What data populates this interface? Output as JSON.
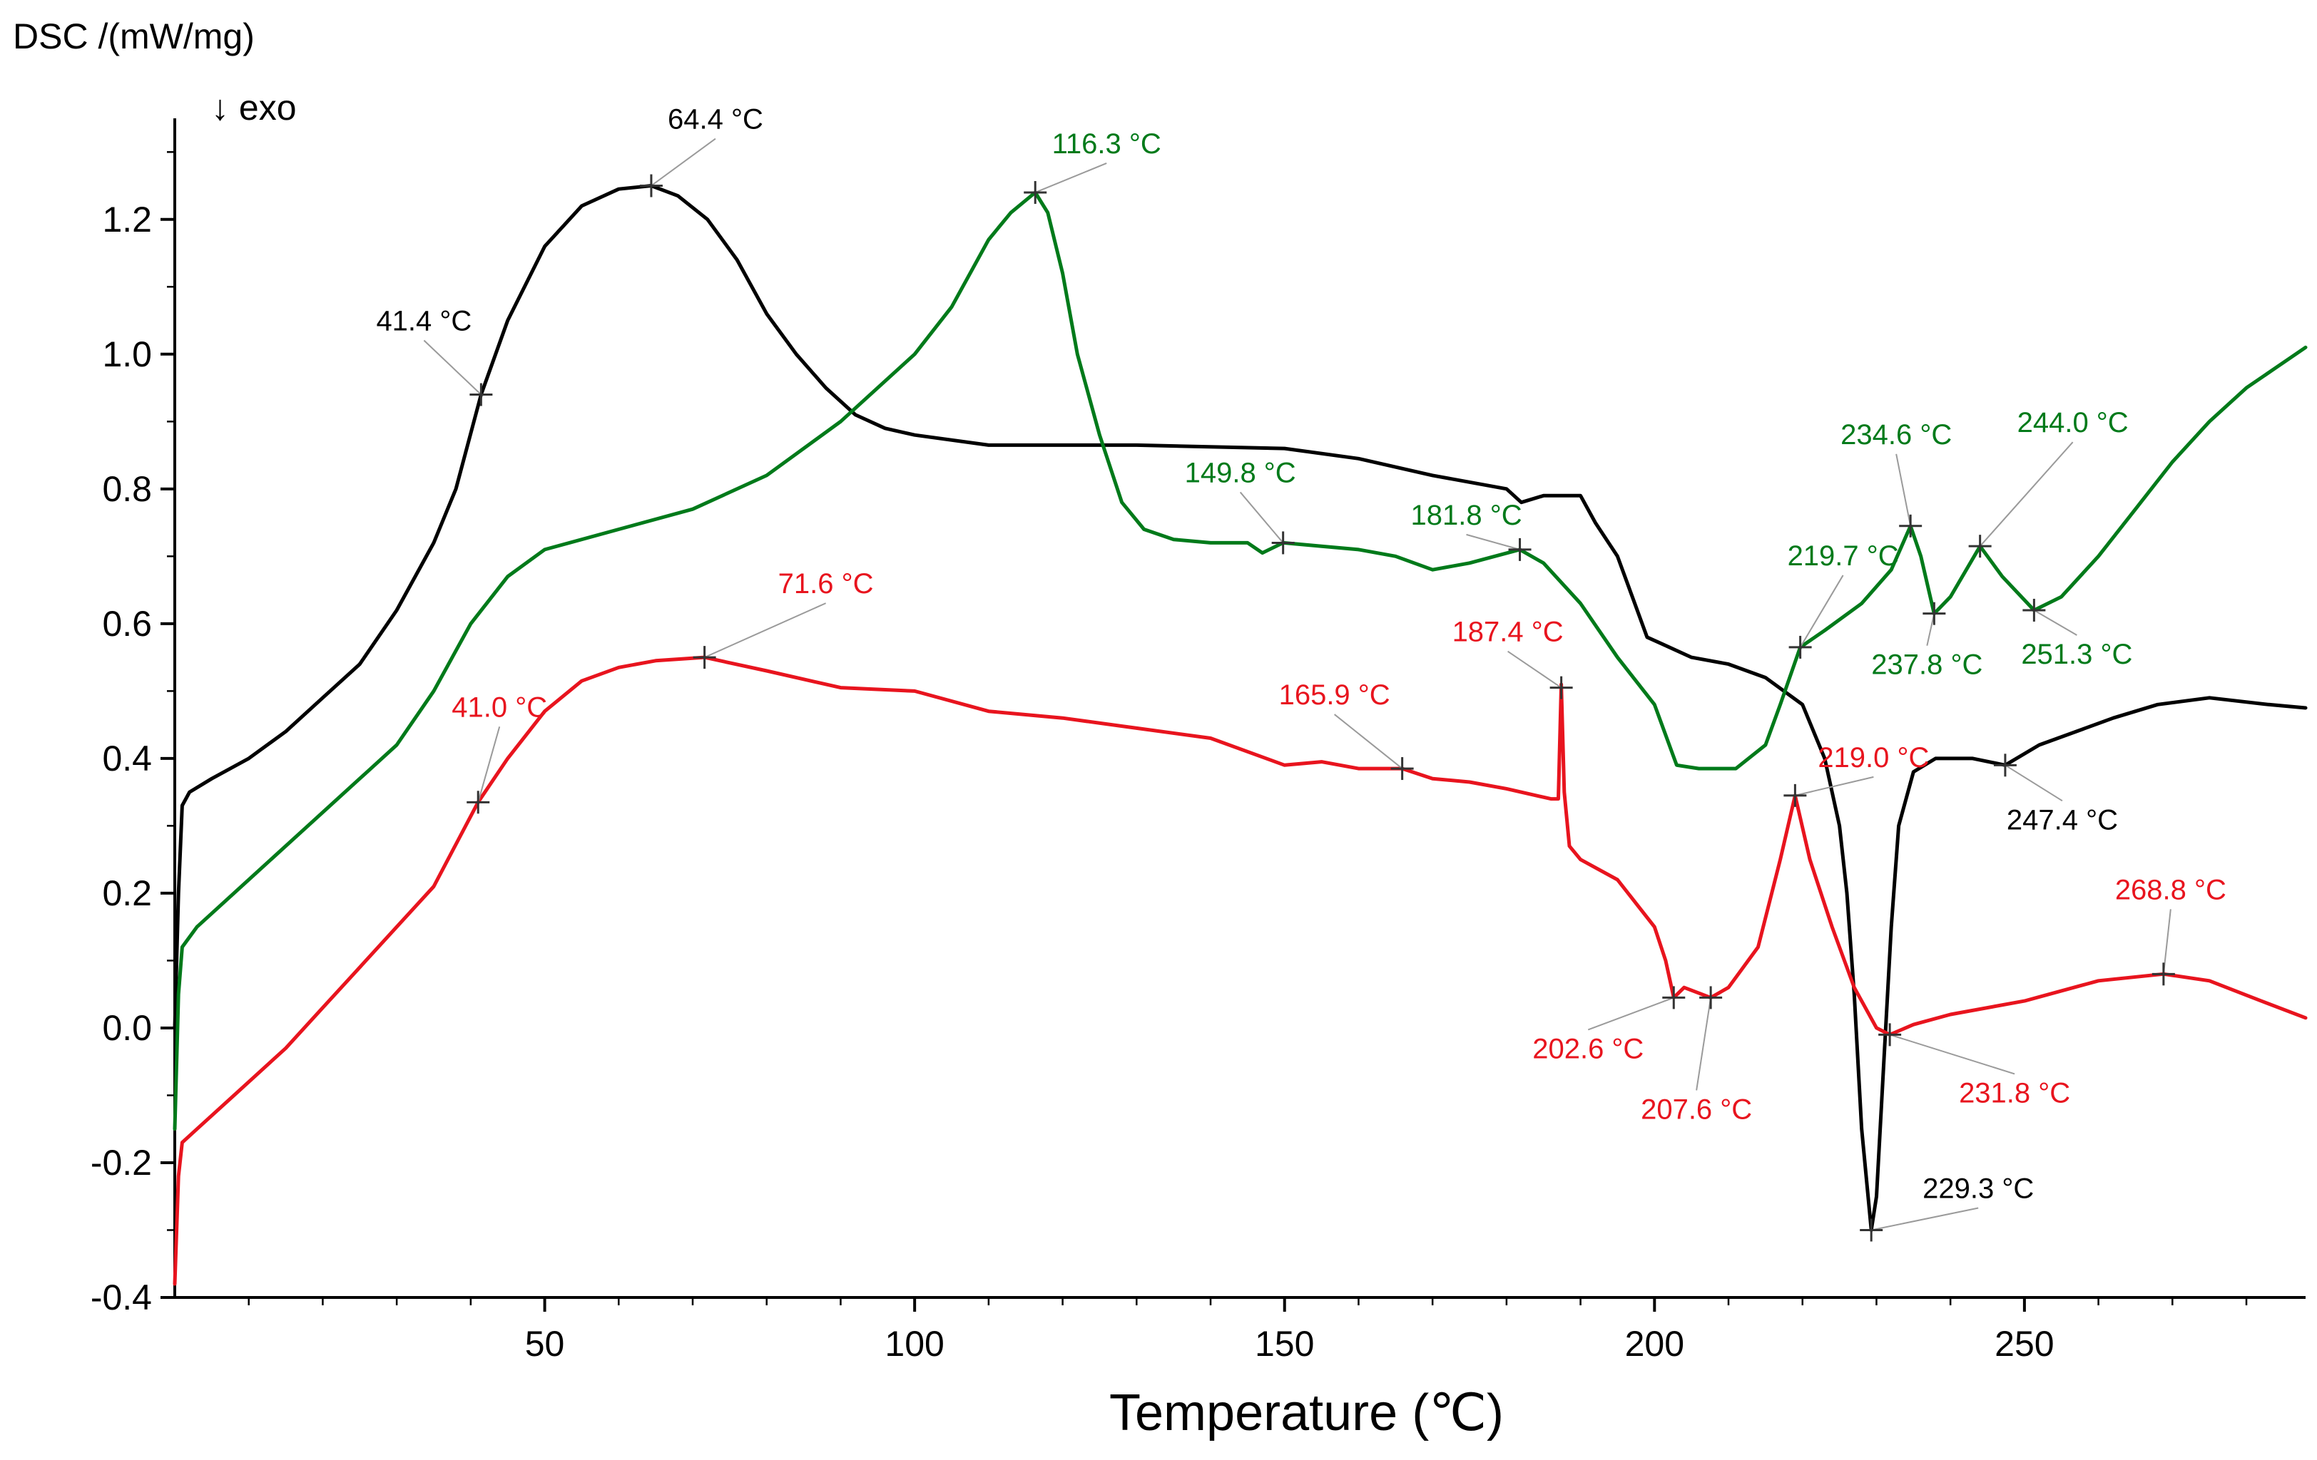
{
  "chart_data": {
    "type": "line",
    "title": "",
    "ylabel": "DSC /(mW/mg)",
    "direction_label": "↓ exo",
    "xlabel": "Temperature (℃)",
    "xlim": [
      0,
      288
    ],
    "ylim": [
      -0.4,
      1.35
    ],
    "xticks": [
      50,
      100,
      150,
      200,
      250
    ],
    "yticks": [
      -0.4,
      -0.2,
      0.0,
      0.2,
      0.4,
      0.6,
      0.8,
      1.0,
      1.2
    ],
    "ytick_labels": [
      "-0.4",
      "-0.2",
      "0.0",
      "0.2",
      "0.4",
      "0.6",
      "0.8",
      "1.0",
      "1.2"
    ],
    "series": [
      {
        "name": "black",
        "color": "#000000",
        "points": [
          [
            0,
            0.0
          ],
          [
            0.5,
            0.2
          ],
          [
            1,
            0.33
          ],
          [
            2,
            0.35
          ],
          [
            5,
            0.37
          ],
          [
            10,
            0.4
          ],
          [
            15,
            0.44
          ],
          [
            20,
            0.49
          ],
          [
            25,
            0.54
          ],
          [
            30,
            0.62
          ],
          [
            35,
            0.72
          ],
          [
            38,
            0.8
          ],
          [
            41.4,
            0.94
          ],
          [
            45,
            1.05
          ],
          [
            50,
            1.16
          ],
          [
            55,
            1.22
          ],
          [
            60,
            1.245
          ],
          [
            64.4,
            1.25
          ],
          [
            68,
            1.235
          ],
          [
            72,
            1.2
          ],
          [
            76,
            1.14
          ],
          [
            80,
            1.06
          ],
          [
            84,
            1.0
          ],
          [
            88,
            0.95
          ],
          [
            92,
            0.91
          ],
          [
            96,
            0.89
          ],
          [
            100,
            0.88
          ],
          [
            110,
            0.865
          ],
          [
            130,
            0.865
          ],
          [
            150,
            0.86
          ],
          [
            160,
            0.845
          ],
          [
            170,
            0.82
          ],
          [
            180,
            0.8
          ],
          [
            182,
            0.78
          ],
          [
            185,
            0.79
          ],
          [
            190,
            0.79
          ],
          [
            192,
            0.75
          ],
          [
            195,
            0.7
          ],
          [
            197,
            0.64
          ],
          [
            199,
            0.58
          ],
          [
            201,
            0.57
          ],
          [
            205,
            0.55
          ],
          [
            210,
            0.54
          ],
          [
            215,
            0.52
          ],
          [
            220,
            0.48
          ],
          [
            223,
            0.4
          ],
          [
            225,
            0.3
          ],
          [
            226,
            0.2
          ],
          [
            227,
            0.05
          ],
          [
            228,
            -0.15
          ],
          [
            229.3,
            -0.3
          ],
          [
            230,
            -0.25
          ],
          [
            231,
            -0.05
          ],
          [
            232,
            0.15
          ],
          [
            233,
            0.3
          ],
          [
            235,
            0.38
          ],
          [
            238,
            0.4
          ],
          [
            243,
            0.4
          ],
          [
            247.4,
            0.39
          ],
          [
            252,
            0.42
          ],
          [
            257,
            0.44
          ],
          [
            262,
            0.46
          ],
          [
            268,
            0.48
          ],
          [
            275,
            0.49
          ],
          [
            283,
            0.48
          ],
          [
            288,
            0.475
          ]
        ]
      },
      {
        "name": "green",
        "color": "#007a1a",
        "points": [
          [
            0,
            -0.15
          ],
          [
            0.5,
            0.05
          ],
          [
            1,
            0.12
          ],
          [
            3,
            0.15
          ],
          [
            10,
            0.22
          ],
          [
            20,
            0.32
          ],
          [
            30,
            0.42
          ],
          [
            35,
            0.5
          ],
          [
            40,
            0.6
          ],
          [
            45,
            0.67
          ],
          [
            50,
            0.71
          ],
          [
            60,
            0.74
          ],
          [
            70,
            0.77
          ],
          [
            80,
            0.82
          ],
          [
            90,
            0.9
          ],
          [
            100,
            1.0
          ],
          [
            105,
            1.07
          ],
          [
            110,
            1.17
          ],
          [
            113,
            1.21
          ],
          [
            116.3,
            1.24
          ],
          [
            118,
            1.21
          ],
          [
            120,
            1.12
          ],
          [
            122,
            1.0
          ],
          [
            125,
            0.88
          ],
          [
            128,
            0.78
          ],
          [
            131,
            0.74
          ],
          [
            135,
            0.725
          ],
          [
            140,
            0.72
          ],
          [
            145,
            0.72
          ],
          [
            147,
            0.705
          ],
          [
            149.8,
            0.72
          ],
          [
            155,
            0.715
          ],
          [
            160,
            0.71
          ],
          [
            165,
            0.7
          ],
          [
            170,
            0.68
          ],
          [
            175,
            0.69
          ],
          [
            181.8,
            0.71
          ],
          [
            185,
            0.69
          ],
          [
            190,
            0.63
          ],
          [
            195,
            0.55
          ],
          [
            200,
            0.48
          ],
          [
            203,
            0.39
          ],
          [
            206,
            0.385
          ],
          [
            211,
            0.385
          ],
          [
            215,
            0.42
          ],
          [
            217,
            0.48
          ],
          [
            219.7,
            0.565
          ],
          [
            223,
            0.59
          ],
          [
            228,
            0.63
          ],
          [
            232,
            0.68
          ],
          [
            234.6,
            0.745
          ],
          [
            236,
            0.7
          ],
          [
            237.8,
            0.615
          ],
          [
            240,
            0.64
          ],
          [
            244,
            0.715
          ],
          [
            247,
            0.67
          ],
          [
            251.3,
            0.62
          ],
          [
            255,
            0.64
          ],
          [
            260,
            0.7
          ],
          [
            265,
            0.77
          ],
          [
            270,
            0.84
          ],
          [
            275,
            0.9
          ],
          [
            280,
            0.95
          ],
          [
            284,
            0.98
          ],
          [
            288,
            1.01
          ]
        ]
      },
      {
        "name": "red",
        "color": "#e8141e",
        "points": [
          [
            0,
            -0.38
          ],
          [
            0.5,
            -0.22
          ],
          [
            1,
            -0.17
          ],
          [
            3,
            -0.15
          ],
          [
            8,
            -0.1
          ],
          [
            15,
            -0.03
          ],
          [
            20,
            0.03
          ],
          [
            25,
            0.09
          ],
          [
            30,
            0.15
          ],
          [
            35,
            0.21
          ],
          [
            41.0,
            0.335
          ],
          [
            45,
            0.4
          ],
          [
            50,
            0.47
          ],
          [
            55,
            0.515
          ],
          [
            60,
            0.535
          ],
          [
            65,
            0.545
          ],
          [
            71.6,
            0.55
          ],
          [
            80,
            0.53
          ],
          [
            90,
            0.505
          ],
          [
            100,
            0.5
          ],
          [
            110,
            0.47
          ],
          [
            120,
            0.46
          ],
          [
            130,
            0.445
          ],
          [
            140,
            0.43
          ],
          [
            150,
            0.39
          ],
          [
            155,
            0.395
          ],
          [
            160,
            0.385
          ],
          [
            165.9,
            0.385
          ],
          [
            170,
            0.37
          ],
          [
            175,
            0.365
          ],
          [
            180,
            0.355
          ],
          [
            186,
            0.34
          ],
          [
            187.0,
            0.34
          ],
          [
            187.4,
            0.51
          ],
          [
            187.8,
            0.35
          ],
          [
            188.5,
            0.27
          ],
          [
            190,
            0.25
          ],
          [
            195,
            0.22
          ],
          [
            200,
            0.15
          ],
          [
            201.5,
            0.1
          ],
          [
            202.6,
            0.045
          ],
          [
            204,
            0.06
          ],
          [
            207.6,
            0.045
          ],
          [
            210,
            0.06
          ],
          [
            214,
            0.12
          ],
          [
            217,
            0.25
          ],
          [
            219.0,
            0.345
          ],
          [
            221,
            0.25
          ],
          [
            224,
            0.15
          ],
          [
            227,
            0.06
          ],
          [
            230,
            0.0
          ],
          [
            231.8,
            -0.01
          ],
          [
            235,
            0.005
          ],
          [
            240,
            0.02
          ],
          [
            250,
            0.04
          ],
          [
            260,
            0.07
          ],
          [
            268.8,
            0.08
          ],
          [
            275,
            0.07
          ],
          [
            282,
            0.04
          ],
          [
            288,
            0.015
          ]
        ]
      }
    ],
    "annotations": [
      {
        "label": "64.4 °C",
        "series": "black",
        "x": 64.4,
        "y": 1.25
      },
      {
        "label": "41.4 °C",
        "series": "black",
        "x": 41.4,
        "y": 0.94
      },
      {
        "label": "229.3 °C",
        "series": "black",
        "x": 229.3,
        "y": -0.3
      },
      {
        "label": "247.4 °C",
        "series": "black",
        "x": 247.4,
        "y": 0.39
      },
      {
        "label": "116.3 °C",
        "series": "green",
        "x": 116.3,
        "y": 1.24
      },
      {
        "label": "149.8 °C",
        "series": "green",
        "x": 149.8,
        "y": 0.72
      },
      {
        "label": "181.8 °C",
        "series": "green",
        "x": 181.8,
        "y": 0.71
      },
      {
        "label": "219.7 °C",
        "series": "green",
        "x": 219.7,
        "y": 0.565
      },
      {
        "label": "234.6 °C",
        "series": "green",
        "x": 234.6,
        "y": 0.745
      },
      {
        "label": "244.0 °C",
        "series": "green",
        "x": 244.0,
        "y": 0.715
      },
      {
        "label": "237.8 °C",
        "series": "green",
        "x": 237.8,
        "y": 0.615
      },
      {
        "label": "251.3 °C",
        "series": "green",
        "x": 251.3,
        "y": 0.62
      },
      {
        "label": "71.6 °C",
        "series": "red",
        "x": 71.6,
        "y": 0.55
      },
      {
        "label": "41.0 °C",
        "series": "red",
        "x": 41.0,
        "y": 0.335
      },
      {
        "label": "187.4 °C",
        "series": "red",
        "x": 187.4,
        "y": 0.505
      },
      {
        "label": "165.9 °C",
        "series": "red",
        "x": 165.9,
        "y": 0.385
      },
      {
        "label": "219.0 °C",
        "series": "red",
        "x": 219.0,
        "y": 0.345
      },
      {
        "label": "202.6 °C",
        "series": "red",
        "x": 202.6,
        "y": 0.045
      },
      {
        "label": "207.6 °C",
        "series": "red",
        "x": 207.6,
        "y": 0.045
      },
      {
        "label": "231.8 °C",
        "series": "red",
        "x": 231.8,
        "y": -0.01
      },
      {
        "label": "268.8 °C",
        "series": "red",
        "x": 268.8,
        "y": 0.08
      }
    ]
  }
}
